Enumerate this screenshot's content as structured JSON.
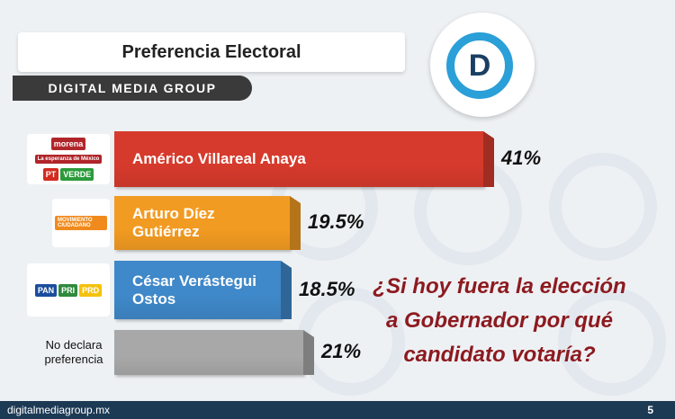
{
  "header": {
    "title": "Preferencia Electoral",
    "brand": "DIGITAL MEDIA GROUP",
    "logo_letter": "D"
  },
  "chart_data": {
    "type": "bar",
    "categories": [
      "Américo Villareal Anaya",
      "Arturo Díez Gutiérrez",
      "César Verástegui Ostos",
      "No declara preferencia"
    ],
    "values": [
      41,
      19.5,
      18.5,
      21
    ],
    "value_labels": [
      "41%",
      "19.5%",
      "18.5%",
      "21%"
    ],
    "colors": [
      "#d63a2c",
      "#f29b22",
      "#3f88c9",
      "#a8a8a8"
    ],
    "logos": [
      [
        "morena",
        "La esperanza de México",
        "PT",
        "VERDE"
      ],
      [
        "MOVIMIENTO CIUDADANO"
      ],
      [
        "PAN",
        "PRI",
        "PRD"
      ]
    ]
  },
  "question": "¿Si hoy fuera la elección a Gobernador por qué candidato votaría?",
  "footer": {
    "url": "digitalmediagroup.mx",
    "page": "5"
  }
}
